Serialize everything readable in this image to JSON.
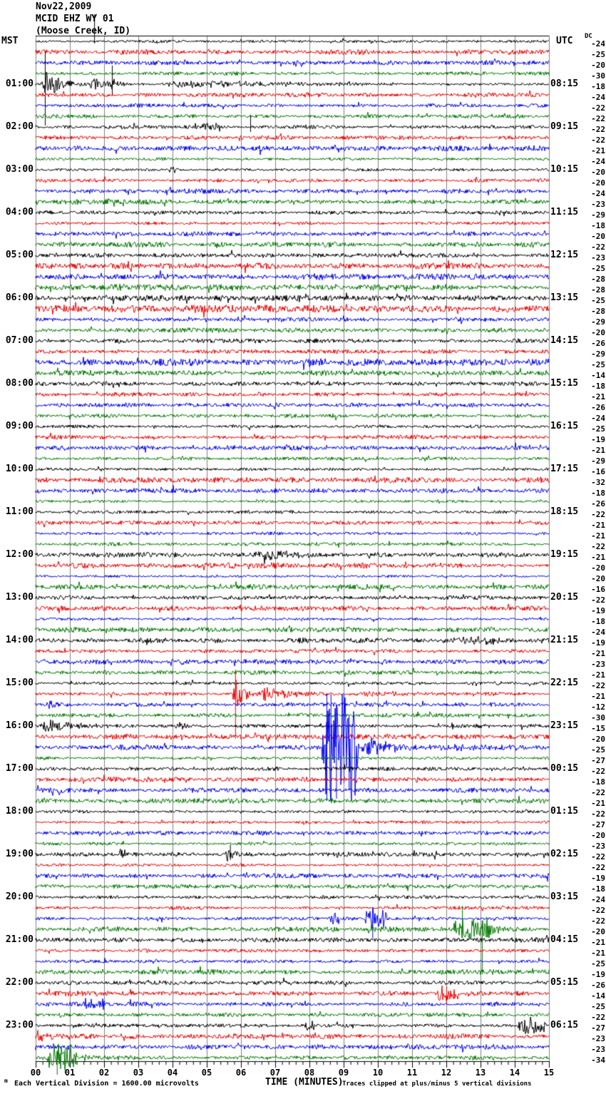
{
  "header": {
    "date": "Nov22,2009",
    "station": "MCID EHZ WY 01",
    "location": "(Moose Creek, ID)",
    "left_tz": "MST",
    "right_tz": "UTC",
    "dc_label": "DC"
  },
  "footer": {
    "corner_mark": "m",
    "scale_note": "Each Vertical Division = 1600.00 microvolts",
    "xaxis_title": "TIME (MINUTES)",
    "clip_note": "Traces clipped at plus/minus 5 vertical divisions"
  },
  "chart_data": {
    "type": "line",
    "kind": "helicorder-seismogram",
    "title": "MCID EHZ WY 01 (Moose Creek, ID) Nov22,2009",
    "xlabel": "TIME (MINUTES)",
    "minutes_per_line": 15,
    "rows": 96,
    "x_ticks": [
      "00",
      "01",
      "02",
      "03",
      "04",
      "05",
      "06",
      "07",
      "08",
      "09",
      "10",
      "11",
      "12",
      "13",
      "14",
      "15"
    ],
    "minor_ticks_per_minute": 5,
    "colors": {
      "trace_cycle": [
        "#000000",
        "#ee0000",
        "#0000ee",
        "#007700"
      ],
      "grid": "#808080",
      "axis": "#000000",
      "background": "#ffffff"
    },
    "left_labels": [
      {
        "row": 4,
        "text": "01:00"
      },
      {
        "row": 8,
        "text": "02:00"
      },
      {
        "row": 12,
        "text": "03:00"
      },
      {
        "row": 16,
        "text": "04:00"
      },
      {
        "row": 20,
        "text": "05:00"
      },
      {
        "row": 24,
        "text": "06:00"
      },
      {
        "row": 28,
        "text": "07:00"
      },
      {
        "row": 32,
        "text": "08:00"
      },
      {
        "row": 36,
        "text": "09:00"
      },
      {
        "row": 40,
        "text": "10:00"
      },
      {
        "row": 44,
        "text": "11:00"
      },
      {
        "row": 48,
        "text": "12:00"
      },
      {
        "row": 52,
        "text": "13:00"
      },
      {
        "row": 56,
        "text": "14:00"
      },
      {
        "row": 60,
        "text": "15:00"
      },
      {
        "row": 64,
        "text": "16:00"
      },
      {
        "row": 68,
        "text": "17:00"
      },
      {
        "row": 72,
        "text": "18:00"
      },
      {
        "row": 76,
        "text": "19:00"
      },
      {
        "row": 80,
        "text": "20:00"
      },
      {
        "row": 84,
        "text": "21:00"
      },
      {
        "row": 88,
        "text": "22:00"
      },
      {
        "row": 92,
        "text": "23:00"
      }
    ],
    "right_labels": [
      {
        "row": 4,
        "text": "08:15"
      },
      {
        "row": 8,
        "text": "09:15"
      },
      {
        "row": 12,
        "text": "10:15"
      },
      {
        "row": 16,
        "text": "11:15"
      },
      {
        "row": 20,
        "text": "12:15"
      },
      {
        "row": 24,
        "text": "13:15"
      },
      {
        "row": 28,
        "text": "14:15"
      },
      {
        "row": 32,
        "text": "15:15"
      },
      {
        "row": 36,
        "text": "16:15"
      },
      {
        "row": 40,
        "text": "17:15"
      },
      {
        "row": 44,
        "text": "18:15"
      },
      {
        "row": 48,
        "text": "19:15"
      },
      {
        "row": 52,
        "text": "20:15"
      },
      {
        "row": 56,
        "text": "21:15"
      },
      {
        "row": 60,
        "text": "22:15"
      },
      {
        "row": 64,
        "text": "23:15"
      },
      {
        "row": 68,
        "text": "00:15"
      },
      {
        "row": 72,
        "text": "01:15"
      },
      {
        "row": 76,
        "text": "02:15"
      },
      {
        "row": 80,
        "text": "03:15"
      },
      {
        "row": 84,
        "text": "04:15"
      },
      {
        "row": 88,
        "text": "05:15"
      },
      {
        "row": 92,
        "text": "06:15"
      }
    ],
    "dc_offsets": [
      -24,
      -25,
      -20,
      -30,
      -18,
      -24,
      -22,
      -22,
      -22,
      -22,
      -21,
      -24,
      -20,
      -20,
      -24,
      -23,
      -29,
      -18,
      -20,
      -22,
      -23,
      -25,
      -28,
      -28,
      -25,
      -28,
      -29,
      -20,
      -26,
      -29,
      -25,
      -14,
      -18,
      -21,
      -26,
      -24,
      -25,
      -19,
      -21,
      -29,
      -16,
      -32,
      -18,
      -26,
      -22,
      -21,
      -21,
      -22,
      -21,
      -20,
      -20,
      -16,
      -22,
      -19,
      -18,
      -24,
      -19,
      -21,
      -23,
      -21,
      -22,
      -21,
      -12,
      -30,
      -15,
      -20,
      -25,
      -27,
      -22,
      -18,
      -22,
      -21,
      -22,
      -27,
      -20,
      -23,
      -22,
      -22,
      -19,
      -18,
      -24,
      -22,
      -22,
      -20,
      -21,
      -21,
      -25,
      -19,
      -26,
      -14,
      -25,
      -22,
      -27,
      -23,
      -23,
      -34
    ],
    "clip_divisions": 5,
    "noise_scale": {
      "5": 1.2,
      "6": 1.15,
      "21": 1.4,
      "22": 1.5,
      "23": 1.35,
      "24": 1.4,
      "25": 1.5,
      "26": 1.45,
      "27": 1.3,
      "28": 1.35,
      "29": 1.45,
      "30": 1.35
    },
    "events": [
      {
        "row": 2,
        "t0": 7.5,
        "t1": 7.85,
        "amp": 4
      },
      {
        "row": 4,
        "t0": 0.15,
        "t1": 1.5,
        "amp": 20,
        "decay": true
      },
      {
        "row": 4,
        "t0": 1.5,
        "t1": 3.2,
        "amp": 9,
        "decay": true
      },
      {
        "row": 4,
        "t0": 2.2,
        "t1": 2.75,
        "amp": 12,
        "decay": true
      },
      {
        "row": 4,
        "t0": 3.2,
        "t1": 15,
        "amp": 4.5,
        "decay": true
      },
      {
        "row": 8,
        "t0": 2.2,
        "t1": 2.75,
        "amp": 7,
        "decay": true
      },
      {
        "row": 8,
        "t0": 4.85,
        "t1": 5.45,
        "amp": 5
      },
      {
        "row": 12,
        "t0": 3.9,
        "t1": 4.1,
        "amp": 4
      },
      {
        "row": 48,
        "t0": 6.35,
        "t1": 9.6,
        "amp": 6,
        "decay": true
      },
      {
        "row": 56,
        "t0": 12.1,
        "t1": 13.6,
        "amp": 5
      },
      {
        "row": 58,
        "t0": 3.9,
        "t1": 4.35,
        "amp": 4
      },
      {
        "row": 61,
        "t0": 5.75,
        "t1": 6.4,
        "amp": 32,
        "decay": true
      },
      {
        "row": 61,
        "t0": 6.4,
        "t1": 9.0,
        "amp": 10,
        "decay": true
      },
      {
        "row": 61,
        "t0": 9.0,
        "t1": 15,
        "amp": 3.5,
        "decay": true
      },
      {
        "row": 62,
        "t0": 0.3,
        "t1": 1.05,
        "amp": 8,
        "decay": true
      },
      {
        "row": 64,
        "t0": 0.1,
        "t1": 2.3,
        "amp": 10,
        "decay": true
      },
      {
        "row": 64,
        "t0": 4.05,
        "t1": 4.7,
        "amp": 7,
        "decay": true
      },
      {
        "row": 66,
        "t0": 8.35,
        "t1": 9.45,
        "amp": 80
      },
      {
        "row": 66,
        "t0": 9.45,
        "t1": 12.0,
        "amp": 14,
        "decay": true
      },
      {
        "row": 66,
        "t0": 12.0,
        "t1": 15,
        "amp": 4,
        "decay": true
      },
      {
        "row": 76,
        "t0": 2.4,
        "t1": 2.6,
        "amp": 5
      },
      {
        "row": 76,
        "t0": 5.5,
        "t1": 6.1,
        "amp": 12,
        "decay": true
      },
      {
        "row": 82,
        "t0": 8.55,
        "t1": 8.95,
        "amp": 9
      },
      {
        "row": 82,
        "t0": 9.55,
        "t1": 10.3,
        "amp": 14
      },
      {
        "row": 83,
        "t0": 12.15,
        "t1": 13.45,
        "amp": 14
      },
      {
        "row": 83,
        "t0": 13.45,
        "t1": 14.0,
        "amp": 5,
        "decay": true
      },
      {
        "row": 89,
        "t0": 11.65,
        "t1": 12.4,
        "amp": 9
      },
      {
        "row": 90,
        "t0": 1.35,
        "t1": 2.05,
        "amp": 7
      },
      {
        "row": 92,
        "t0": 7.85,
        "t1": 8.15,
        "amp": 6
      },
      {
        "row": 92,
        "t0": 14.05,
        "t1": 14.95,
        "amp": 12
      },
      {
        "row": 93,
        "t0": 0.02,
        "t1": 0.45,
        "amp": 11,
        "decay": true
      },
      {
        "row": 95,
        "t0": 0.3,
        "t1": 1.25,
        "amp": 18
      }
    ],
    "spikes": [
      {
        "row": 0,
        "t": 1.71,
        "up": 38,
        "down": 3
      },
      {
        "row": 4,
        "t": 0.27,
        "up": 46,
        "down": 58
      },
      {
        "row": 4,
        "t": 2.23,
        "up": 26,
        "down": 16
      },
      {
        "row": 8,
        "t": 6.27,
        "up": 16,
        "down": 7
      },
      {
        "row": 61,
        "t": 5.83,
        "up": 34,
        "down": 63
      },
      {
        "row": 66,
        "t": 8.5,
        "up": 75,
        "down": 75
      },
      {
        "row": 66,
        "t": 8.62,
        "up": 75,
        "down": 75
      },
      {
        "row": 66,
        "t": 8.78,
        "up": 60,
        "down": 72
      },
      {
        "row": 66,
        "t": 9.0,
        "up": 75,
        "down": 50
      },
      {
        "row": 66,
        "t": 9.15,
        "up": 45,
        "down": 60
      },
      {
        "row": 76,
        "t": 5.68,
        "up": 14,
        "down": 8
      },
      {
        "row": 82,
        "t": 9.84,
        "up": 16,
        "down": 28
      },
      {
        "row": 83,
        "t": 12.46,
        "up": 33,
        "down": 12
      },
      {
        "row": 83,
        "t": 13.04,
        "up": 12,
        "down": 63
      },
      {
        "row": 89,
        "t": 12.0,
        "up": 10,
        "down": 15
      },
      {
        "row": 95,
        "t": 0.62,
        "up": 10,
        "down": 24
      },
      {
        "row": 95,
        "t": 0.85,
        "up": 12,
        "down": 22
      }
    ]
  }
}
